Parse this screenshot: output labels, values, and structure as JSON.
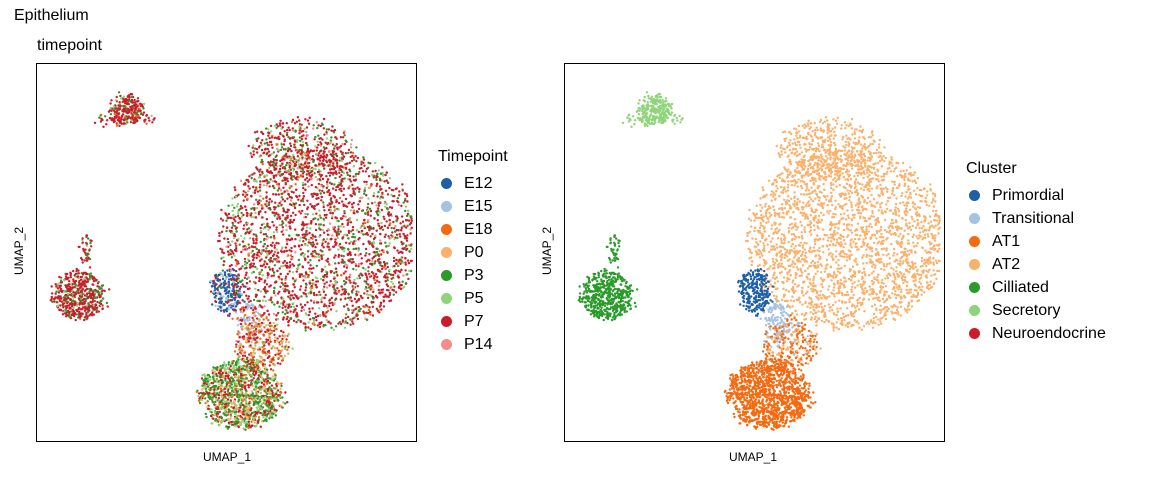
{
  "page_title": "Epithelium",
  "chart_data": [
    {
      "type": "scatter",
      "title": "timepoint",
      "xlabel": "UMAP_1",
      "ylabel": "UMAP_2",
      "legend": {
        "title": "Timepoint",
        "placement": "right",
        "entries": [
          {
            "label": "E12",
            "color": "#1f5fa6"
          },
          {
            "label": "E15",
            "color": "#a6c2e3"
          },
          {
            "label": "E18",
            "color": "#f36a10"
          },
          {
            "label": "P0",
            "color": "#fbb06b"
          },
          {
            "label": "P3",
            "color": "#2a9a2a"
          },
          {
            "label": "P5",
            "color": "#8ed47a"
          },
          {
            "label": "P7",
            "color": "#cc1c2a"
          },
          {
            "label": "P14",
            "color": "#f48c8c"
          }
        ]
      },
      "grid": false,
      "axis_ticks": false
    },
    {
      "type": "scatter",
      "title": "",
      "xlabel": "UMAP_1",
      "ylabel": "UMAP_2",
      "legend": {
        "title": "Cluster",
        "placement": "right",
        "entries": [
          {
            "label": "Primordial",
            "color": "#1f5fa6"
          },
          {
            "label": "Transitional",
            "color": "#a6c2e3"
          },
          {
            "label": "AT1",
            "color": "#f36a10"
          },
          {
            "label": "AT2",
            "color": "#fbb06b"
          },
          {
            "label": "Cilliated",
            "color": "#2a9a2a"
          },
          {
            "label": "Secretory",
            "color": "#8ed47a"
          },
          {
            "label": "Neuroendocrine",
            "color": "#cc1c2a"
          }
        ]
      },
      "grid": false,
      "axis_ticks": false
    }
  ]
}
